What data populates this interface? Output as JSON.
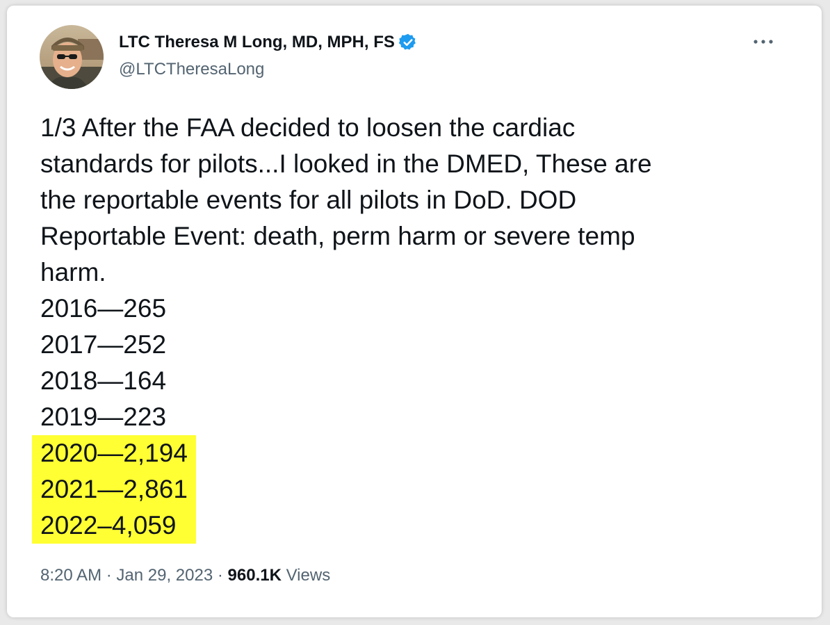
{
  "author": {
    "display_name": "LTC Theresa M Long, MD, MPH, FS",
    "handle": "@LTCTheresaLong",
    "verified_icon": "verified-badge-icon",
    "verified_color": "#1d9bf0"
  },
  "tweet": {
    "lines": [
      "1/3 After the FAA decided to loosen the cardiac",
      "standards for pilots...I looked in the DMED, These are",
      "the reportable events for all pilots in DoD.  DOD",
      "Reportable Event: death, perm harm or severe temp",
      "harm."
    ],
    "years": [
      "2016—265",
      "2017—252",
      "2018—164",
      "2019—223"
    ],
    "highlighted_years": [
      "2020—2,194",
      "2021—2,861",
      "2022–4,059"
    ],
    "highlight_color": "#ffff33"
  },
  "meta": {
    "time": "8:20 AM",
    "separator": "·",
    "date": "Jan 29, 2023",
    "views_count": "960.1K",
    "views_label": "Views"
  },
  "more_icon": "more-dots-icon"
}
